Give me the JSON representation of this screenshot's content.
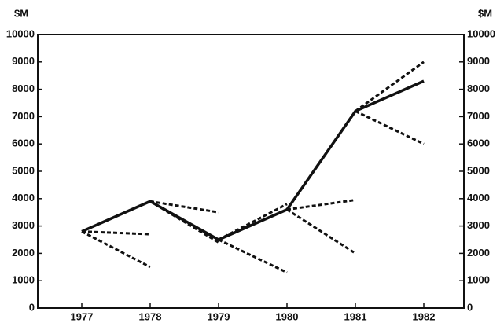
{
  "chart_data": {
    "type": "line",
    "y_unit_label": "$M",
    "y2_unit_label": "$M",
    "categories": [
      "1977",
      "1978",
      "1979",
      "1980",
      "1981",
      "1982"
    ],
    "series": [
      {
        "color": "#111111",
        "dashed": false,
        "values": [
          2800,
          3900,
          2500,
          3600,
          7200,
          8300
        ]
      },
      {
        "color": "#111111",
        "dashed": true,
        "values": [
          2800,
          2700,
          null,
          null,
          null,
          null
        ]
      },
      {
        "color": "#111111",
        "dashed": true,
        "values": [
          2800,
          1500,
          null,
          null,
          null,
          null
        ]
      },
      {
        "color": "#111111",
        "dashed": true,
        "values": [
          null,
          3900,
          3500,
          null,
          null,
          null
        ]
      },
      {
        "color": "#111111",
        "dashed": true,
        "values": [
          null,
          3900,
          2400,
          null,
          null,
          null
        ]
      },
      {
        "color": "#111111",
        "dashed": true,
        "values": [
          null,
          null,
          2500,
          3800,
          null,
          null
        ]
      },
      {
        "color": "#111111",
        "dashed": true,
        "values": [
          null,
          null,
          2500,
          1300,
          null,
          null
        ]
      },
      {
        "color": "#111111",
        "dashed": true,
        "values": [
          null,
          null,
          null,
          3600,
          3950,
          null
        ]
      },
      {
        "color": "#111111",
        "dashed": true,
        "values": [
          null,
          null,
          null,
          3600,
          2000,
          null
        ]
      },
      {
        "color": "#111111",
        "dashed": true,
        "values": [
          null,
          null,
          null,
          null,
          7200,
          9000
        ]
      },
      {
        "color": "#111111",
        "dashed": true,
        "values": [
          null,
          null,
          null,
          null,
          7200,
          6000
        ]
      }
    ],
    "ylim": [
      0,
      10000
    ],
    "yticks": [
      0,
      1000,
      2000,
      3000,
      4000,
      5000,
      6000,
      7000,
      8000,
      9000,
      10000
    ],
    "y2lim": [
      0,
      10000
    ],
    "y2ticks": [
      0,
      1000,
      2000,
      3000,
      4000,
      5000,
      6000,
      7000,
      8000,
      9000,
      10000
    ]
  }
}
